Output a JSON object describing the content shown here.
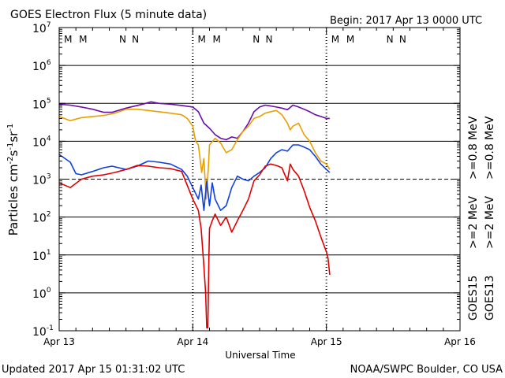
{
  "header": {
    "title": "GOES Electron Flux (5 minute data)",
    "begin": "Begin: 2017 Apr 13 0000 UTC"
  },
  "footer": {
    "updated": "Updated 2017 Apr 15 01:31:02 UTC",
    "source": "NOAA/SWPC Boulder, CO USA"
  },
  "colors": {
    "goes15_gt08": "#6a0dad",
    "goes13_gt08": "#e8a000",
    "goes15_gt2": "#1040e0",
    "goes13_gt2": "#e00000",
    "magnetopause_M_a": "#d01010",
    "magnetopause_M_b": "#1030d0",
    "noon_N_a": "#d01010",
    "noon_N_b": "#1030d0"
  },
  "chart_data": {
    "type": "line",
    "title": "GOES Electron Flux (5 minute data)",
    "xlabel": "Universal Time",
    "ylabel_parts": [
      "Particles cm",
      "-2",
      "s",
      "-1",
      "sr",
      "-1"
    ],
    "yscale": "log",
    "ylim": [
      0.1,
      10000000
    ],
    "xlim_hours": [
      0,
      72
    ],
    "x_ticks": [
      {
        "hour": 0,
        "label": "Apr 13"
      },
      {
        "hour": 24,
        "label": "Apr 14"
      },
      {
        "hour": 48,
        "label": "Apr 15"
      },
      {
        "hour": 72,
        "label": "Apr 16"
      }
    ],
    "y_ticks": [
      {
        "exp": 7,
        "base": "10",
        "sup": "7"
      },
      {
        "exp": 6,
        "base": "10",
        "sup": "6"
      },
      {
        "exp": 5,
        "base": "10",
        "sup": "5"
      },
      {
        "exp": 4,
        "base": "10",
        "sup": "4"
      },
      {
        "exp": 3,
        "base": "10",
        "sup": "3"
      },
      {
        "exp": 2,
        "base": "10",
        "sup": "2"
      },
      {
        "exp": 1,
        "base": "10",
        "sup": "1"
      },
      {
        "exp": 0,
        "base": "10",
        "sup": "0"
      },
      {
        "exp": -1,
        "base": "10",
        "sup": "-1"
      }
    ],
    "alert_threshold": 1000,
    "day_markers_hours": [
      24,
      48
    ],
    "marker_rows": [
      {
        "hour": 1.6,
        "label": "M",
        "color_key": "magnetopause_M_a"
      },
      {
        "hour": 4.3,
        "label": "M",
        "color_key": "magnetopause_M_b"
      },
      {
        "hour": 11.4,
        "label": "N",
        "color_key": "noon_N_a"
      },
      {
        "hour": 13.7,
        "label": "N",
        "color_key": "noon_N_b"
      },
      {
        "hour": 25.6,
        "label": "M",
        "color_key": "magnetopause_M_a"
      },
      {
        "hour": 28.3,
        "label": "M",
        "color_key": "magnetopause_M_b"
      },
      {
        "hour": 35.4,
        "label": "N",
        "color_key": "noon_N_a"
      },
      {
        "hour": 37.7,
        "label": "N",
        "color_key": "noon_N_b"
      },
      {
        "hour": 49.6,
        "label": "M",
        "color_key": "magnetopause_M_a"
      },
      {
        "hour": 52.3,
        "label": "M",
        "color_key": "magnetopause_M_b"
      },
      {
        "hour": 59.4,
        "label": "N",
        "color_key": "noon_N_a"
      },
      {
        "hour": 61.7,
        "label": "N",
        "color_key": "noon_N_b"
      }
    ],
    "legend": [
      {
        "label": ">=0.8 MeV",
        "color_key": "goes15_gt08"
      },
      {
        "label": ">=0.8 MeV",
        "color_key": "goes13_gt08"
      },
      {
        "label": ">=2 MeV",
        "color_key": "goes15_gt2"
      },
      {
        "label": ">=2 MeV",
        "color_key": "goes13_gt2"
      }
    ],
    "satellite_labels": [
      "GOES15",
      "GOES13"
    ],
    "series": [
      {
        "name": "GOES15 >=0.8 MeV",
        "color_key": "goes15_gt08",
        "points": [
          [
            0,
            95000
          ],
          [
            2,
            90000
          ],
          [
            4,
            80000
          ],
          [
            6,
            70000
          ],
          [
            8,
            58000
          ],
          [
            9.5,
            58000
          ],
          [
            12,
            75000
          ],
          [
            15,
            95000
          ],
          [
            16.5,
            110000
          ],
          [
            18,
            100000
          ],
          [
            20,
            95000
          ],
          [
            22,
            88000
          ],
          [
            24,
            80000
          ],
          [
            25,
            60000
          ],
          [
            26,
            30000
          ],
          [
            27,
            22000
          ],
          [
            28,
            15000
          ],
          [
            29,
            12000
          ],
          [
            30,
            11000
          ],
          [
            31,
            13000
          ],
          [
            32,
            12000
          ],
          [
            33,
            18000
          ],
          [
            34,
            30000
          ],
          [
            35,
            60000
          ],
          [
            36,
            80000
          ],
          [
            37,
            90000
          ],
          [
            38,
            85000
          ],
          [
            39,
            80000
          ],
          [
            40,
            75000
          ],
          [
            41,
            68000
          ],
          [
            42,
            90000
          ],
          [
            43,
            80000
          ],
          [
            44,
            70000
          ],
          [
            45,
            60000
          ],
          [
            46,
            50000
          ],
          [
            47,
            45000
          ],
          [
            48,
            40000
          ],
          [
            48.6,
            40000
          ]
        ]
      },
      {
        "name": "GOES13 >=0.8 MeV",
        "color_key": "goes13_gt08",
        "points": [
          [
            0,
            45000
          ],
          [
            2,
            35000
          ],
          [
            4,
            42000
          ],
          [
            6,
            45000
          ],
          [
            8,
            48000
          ],
          [
            10,
            55000
          ],
          [
            12,
            70000
          ],
          [
            14,
            70000
          ],
          [
            16,
            65000
          ],
          [
            18,
            60000
          ],
          [
            20,
            55000
          ],
          [
            22,
            50000
          ],
          [
            23,
            40000
          ],
          [
            24,
            25000
          ],
          [
            24.5,
            10000
          ],
          [
            25,
            8000
          ],
          [
            25.6,
            1500
          ],
          [
            26,
            3500
          ],
          [
            26.4,
            300
          ],
          [
            26.8,
            2000
          ],
          [
            27,
            8000
          ],
          [
            28,
            12000
          ],
          [
            29,
            9000
          ],
          [
            30,
            5000
          ],
          [
            31,
            6000
          ],
          [
            32,
            11000
          ],
          [
            33,
            18000
          ],
          [
            34,
            25000
          ],
          [
            35,
            40000
          ],
          [
            36,
            45000
          ],
          [
            37,
            55000
          ],
          [
            38,
            60000
          ],
          [
            39,
            65000
          ],
          [
            40,
            50000
          ],
          [
            41,
            30000
          ],
          [
            41.5,
            20000
          ],
          [
            42,
            25000
          ],
          [
            43,
            30000
          ],
          [
            44,
            15000
          ],
          [
            45,
            10000
          ],
          [
            46,
            5000
          ],
          [
            47,
            3000
          ],
          [
            48,
            2500
          ],
          [
            48.6,
            1800
          ]
        ]
      },
      {
        "name": "GOES15 >=2 MeV",
        "color_key": "goes15_gt2",
        "points": [
          [
            0,
            4500
          ],
          [
            2,
            2800
          ],
          [
            3,
            1400
          ],
          [
            4,
            1300
          ],
          [
            6,
            1600
          ],
          [
            8,
            2000
          ],
          [
            9.5,
            2200
          ],
          [
            12,
            1800
          ],
          [
            14,
            2200
          ],
          [
            16,
            3000
          ],
          [
            18,
            2800
          ],
          [
            20,
            2500
          ],
          [
            22,
            1800
          ],
          [
            23,
            1200
          ],
          [
            24,
            600
          ],
          [
            25,
            300
          ],
          [
            25.5,
            700
          ],
          [
            26,
            150
          ],
          [
            26.5,
            900
          ],
          [
            27,
            200
          ],
          [
            27.5,
            800
          ],
          [
            28,
            300
          ],
          [
            29,
            150
          ],
          [
            30,
            200
          ],
          [
            31,
            600
          ],
          [
            32,
            1200
          ],
          [
            33,
            1000
          ],
          [
            34,
            900
          ],
          [
            35,
            1200
          ],
          [
            36,
            1500
          ],
          [
            37,
            2000
          ],
          [
            38,
            3500
          ],
          [
            39,
            5000
          ],
          [
            40,
            6000
          ],
          [
            41,
            5500
          ],
          [
            42,
            8000
          ],
          [
            43,
            8000
          ],
          [
            44,
            7000
          ],
          [
            45,
            6000
          ],
          [
            46,
            4000
          ],
          [
            47,
            2500
          ],
          [
            48,
            1800
          ],
          [
            48.6,
            1500
          ]
        ]
      },
      {
        "name": "GOES13 >=2 MeV",
        "color_key": "goes13_gt2",
        "points": [
          [
            0,
            800
          ],
          [
            2,
            600
          ],
          [
            4,
            1000
          ],
          [
            6,
            1200
          ],
          [
            8,
            1300
          ],
          [
            10,
            1500
          ],
          [
            12,
            1800
          ],
          [
            14,
            2300
          ],
          [
            16,
            2200
          ],
          [
            18,
            2000
          ],
          [
            20,
            1900
          ],
          [
            22,
            1600
          ],
          [
            24,
            300
          ],
          [
            25,
            150
          ],
          [
            25.5,
            50
          ],
          [
            26,
            5
          ],
          [
            26.3,
            1
          ],
          [
            26.5,
            0.12
          ],
          [
            26.7,
            0.12
          ],
          [
            26.9,
            10
          ],
          [
            27,
            50
          ],
          [
            27.5,
            80
          ],
          [
            28,
            120
          ],
          [
            29,
            60
          ],
          [
            30,
            100
          ],
          [
            31,
            40
          ],
          [
            32,
            80
          ],
          [
            33,
            150
          ],
          [
            34,
            300
          ],
          [
            35,
            900
          ],
          [
            36,
            1300
          ],
          [
            37,
            2200
          ],
          [
            38,
            2500
          ],
          [
            39,
            2300
          ],
          [
            40,
            2000
          ],
          [
            41,
            900
          ],
          [
            41.5,
            2500
          ],
          [
            42,
            1800
          ],
          [
            43,
            1200
          ],
          [
            44,
            500
          ],
          [
            45,
            180
          ],
          [
            46,
            80
          ],
          [
            47,
            30
          ],
          [
            48,
            12
          ],
          [
            48.3,
            8
          ],
          [
            48.6,
            3
          ]
        ]
      }
    ]
  }
}
